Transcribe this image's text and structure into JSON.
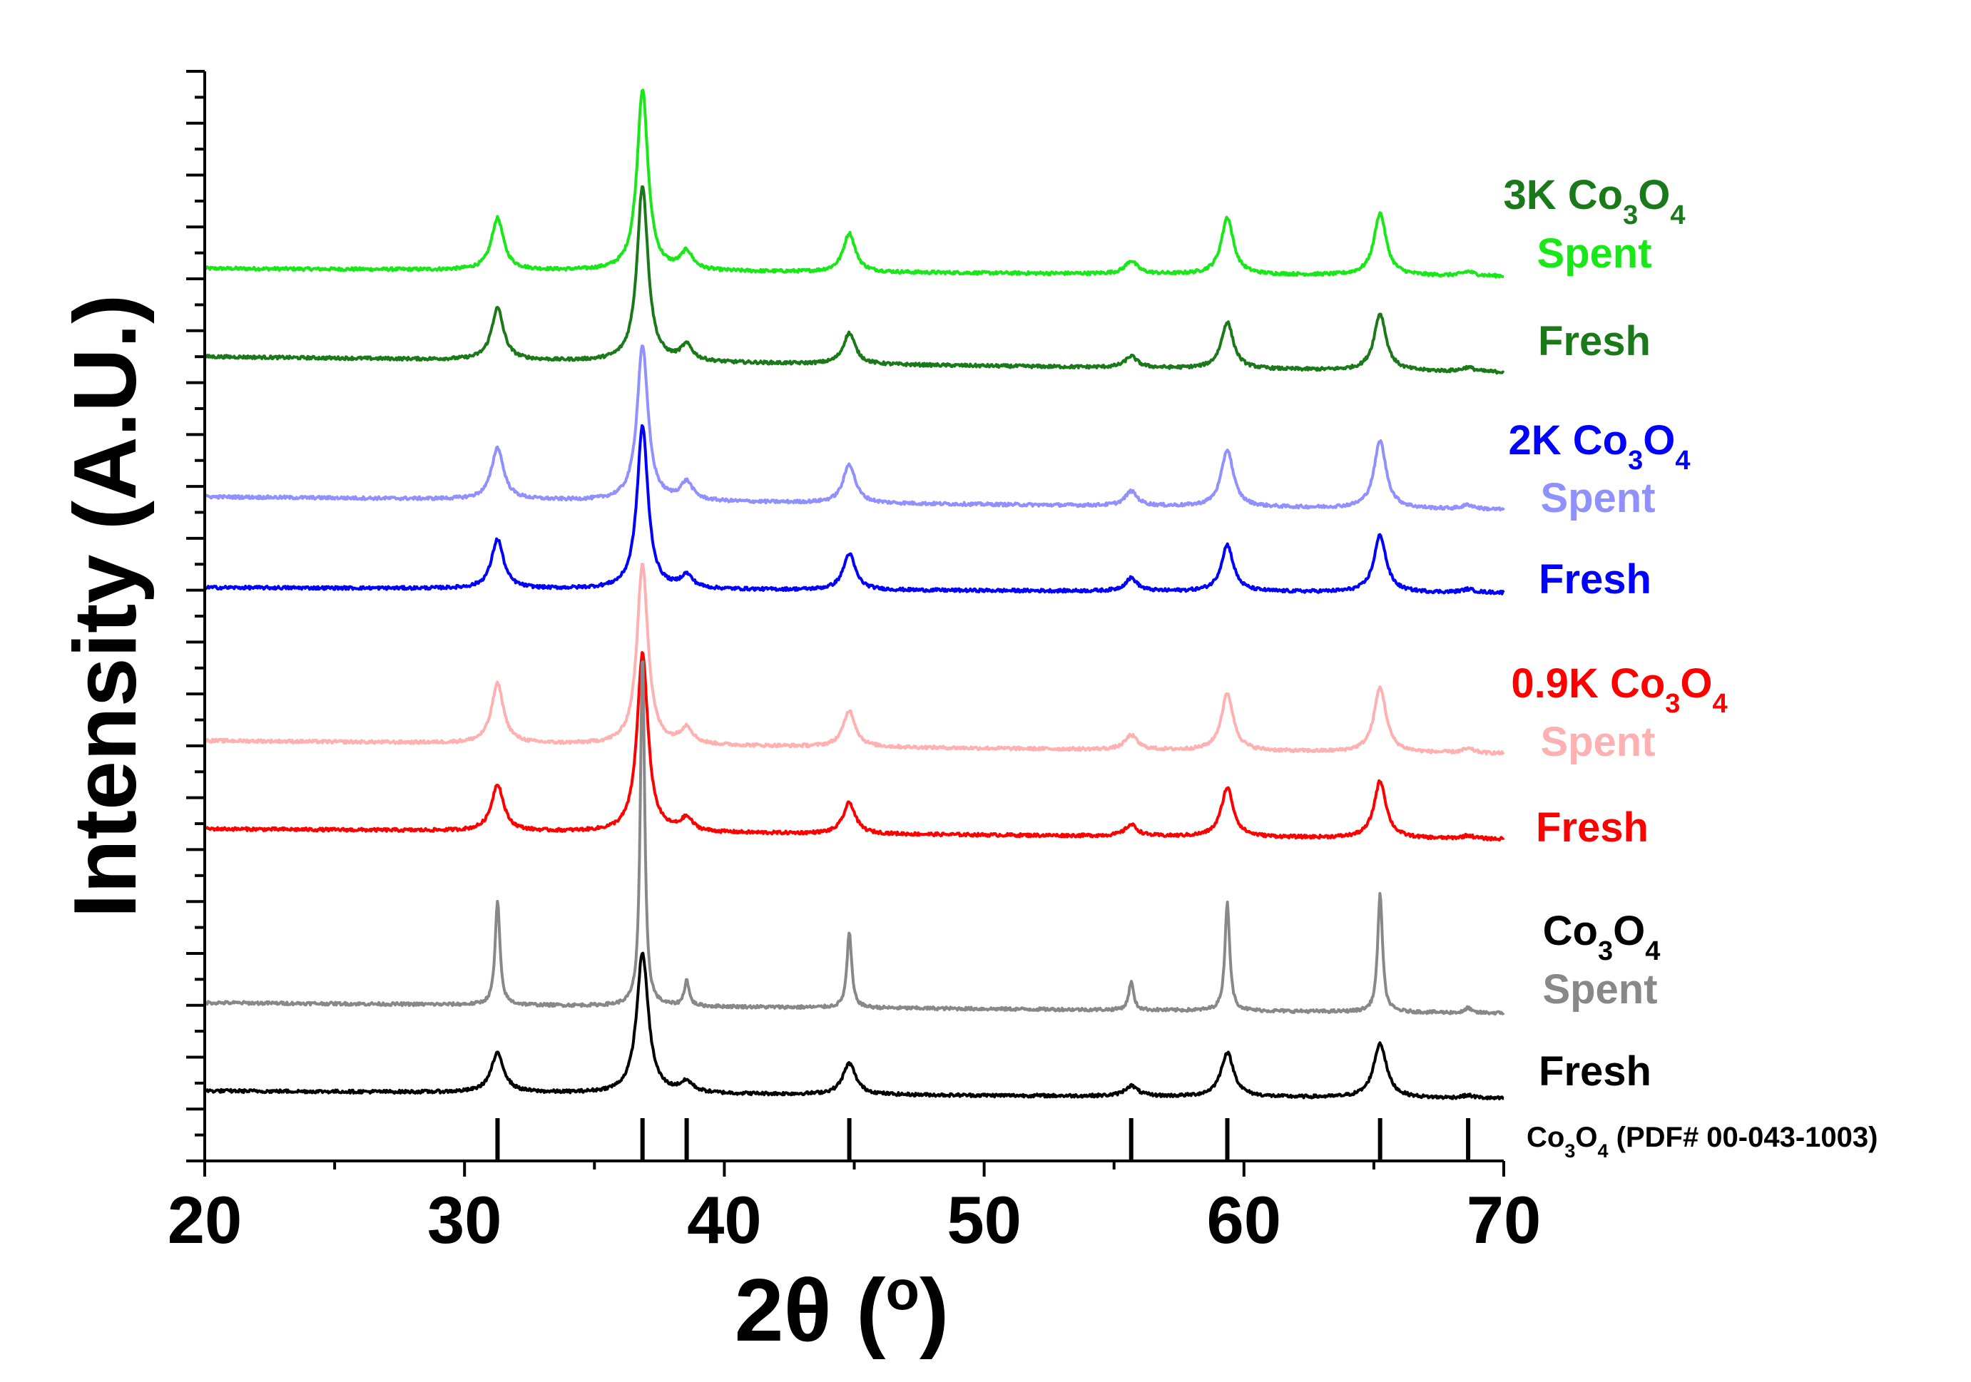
{
  "chart_data": {
    "type": "line",
    "title": "",
    "xlabel": "2θ (°)",
    "ylabel": "Intensity (A.U.)",
    "xlim": [
      20,
      70
    ],
    "ylim": [
      0,
      21
    ],
    "x_ticks": [
      20,
      30,
      40,
      50,
      60,
      70
    ],
    "x_tick_labels": [
      "20",
      "30",
      "40",
      "50",
      "60",
      "70"
    ],
    "y_tick_count": 21,
    "peak_positions": [
      31.27,
      36.85,
      38.55,
      44.81,
      55.66,
      59.36,
      65.24,
      68.63
    ],
    "reference": {
      "label": "Co3O4 (PDF# 00-043-1003)",
      "positions": [
        31.27,
        36.85,
        38.55,
        44.81,
        55.66,
        59.36,
        65.24,
        68.63
      ],
      "relative_heights": [
        1,
        1,
        1,
        1,
        1,
        1,
        1,
        1
      ]
    },
    "groups": [
      {
        "name": "3K Co3O4",
        "color": "#1a7a1a"
      },
      {
        "name": "2K Co3O4",
        "color": "#0000ff"
      },
      {
        "name": "0.9K Co3O4",
        "color": "#ff0000"
      },
      {
        "name": "Co3O4",
        "color": "#000000"
      }
    ],
    "series": [
      {
        "name": "3K Co3O4 Spent",
        "group": "3K Co3O4",
        "state": "Spent",
        "color": "#18e818",
        "baseline_start": 17.2,
        "baseline_end": 17.05,
        "peak_heights": [
          1.0,
          3.5,
          0.35,
          0.75,
          0.25,
          1.1,
          1.2,
          0.08
        ],
        "peak_width": 0.28
      },
      {
        "name": "3K Co3O4 Fresh",
        "group": "3K Co3O4",
        "state": "Fresh",
        "color": "#1a7a1a",
        "baseline_start": 15.5,
        "baseline_end": 15.2,
        "peak_heights": [
          1.0,
          3.4,
          0.3,
          0.6,
          0.22,
          0.9,
          1.1,
          0.08
        ],
        "peak_width": 0.28
      },
      {
        "name": "2K Co3O4 Spent",
        "group": "2K Co3O4",
        "state": "Spent",
        "color": "#9090ff",
        "baseline_start": 12.8,
        "baseline_end": 12.55,
        "peak_heights": [
          1.0,
          3.0,
          0.35,
          0.75,
          0.28,
          1.1,
          1.3,
          0.08
        ],
        "peak_width": 0.28
      },
      {
        "name": "2K Co3O4 Fresh",
        "group": "2K Co3O4",
        "state": "Fresh",
        "color": "#0000ff",
        "baseline_start": 11.05,
        "baseline_end": 10.95,
        "peak_heights": [
          0.95,
          3.15,
          0.25,
          0.7,
          0.25,
          0.9,
          1.1,
          0.06
        ],
        "peak_width": 0.28
      },
      {
        "name": "0.9K Co3O4 Spent",
        "group": "0.9K Co3O4",
        "state": "Spent",
        "color": "#ffb0b0",
        "baseline_start": 8.1,
        "baseline_end": 7.85,
        "peak_heights": [
          1.15,
          3.5,
          0.32,
          0.7,
          0.28,
          1.1,
          1.25,
          0.08
        ],
        "peak_width": 0.28
      },
      {
        "name": "0.9K Co3O4 Fresh",
        "group": "0.9K Co3O4",
        "state": "Fresh",
        "color": "#ff0000",
        "baseline_start": 6.4,
        "baseline_end": 6.2,
        "peak_heights": [
          0.9,
          3.45,
          0.25,
          0.6,
          0.22,
          0.95,
          1.1,
          0.06
        ],
        "peak_width": 0.28
      },
      {
        "name": "Co3O4 Spent",
        "group": "Co3O4",
        "state": "Spent",
        "color": "#888888",
        "baseline_start": 3.05,
        "baseline_end": 2.85,
        "peak_heights": [
          2.0,
          6.8,
          0.5,
          1.45,
          0.55,
          2.1,
          2.3,
          0.1
        ],
        "peak_width": 0.11
      },
      {
        "name": "Co3O4 Fresh",
        "group": "Co3O4",
        "state": "Fresh",
        "color": "#000000",
        "baseline_start": 1.35,
        "baseline_end": 1.2,
        "peak_heights": [
          0.75,
          2.7,
          0.2,
          0.6,
          0.2,
          0.85,
          1.05,
          0.05
        ],
        "peak_width": 0.3
      }
    ],
    "annotations": {
      "group_3k": {
        "prefix": "3K Co",
        "sub1": "3",
        "mid": "O",
        "sub2": "4"
      },
      "label_3k_spent": "Spent",
      "label_3k_fresh": "Fresh",
      "group_2k": {
        "prefix": "2K Co",
        "sub1": "3",
        "mid": "O",
        "sub2": "4"
      },
      "label_2k_spent": "Spent",
      "label_2k_fresh": "Fresh",
      "group_09k": {
        "prefix": "0.9K Co",
        "sub1": "3",
        "mid": "O",
        "sub2": "4"
      },
      "label_09k_spent": "Spent",
      "label_09k_fresh": "Fresh",
      "group_co3o4": {
        "prefix": "Co",
        "sub1": "3",
        "mid": "O",
        "sub2": "4"
      },
      "label_co3o4_spent": "Spent",
      "label_co3o4_fresh": "Fresh",
      "ref_label": {
        "prefix": "Co",
        "sub1": "3",
        "mid": "O",
        "sub2": "4",
        "suffix": " (PDF# 00-043-1003)"
      },
      "xlabel_parts": {
        "main": "2θ (",
        "sup": "o",
        "close": ")"
      }
    }
  }
}
